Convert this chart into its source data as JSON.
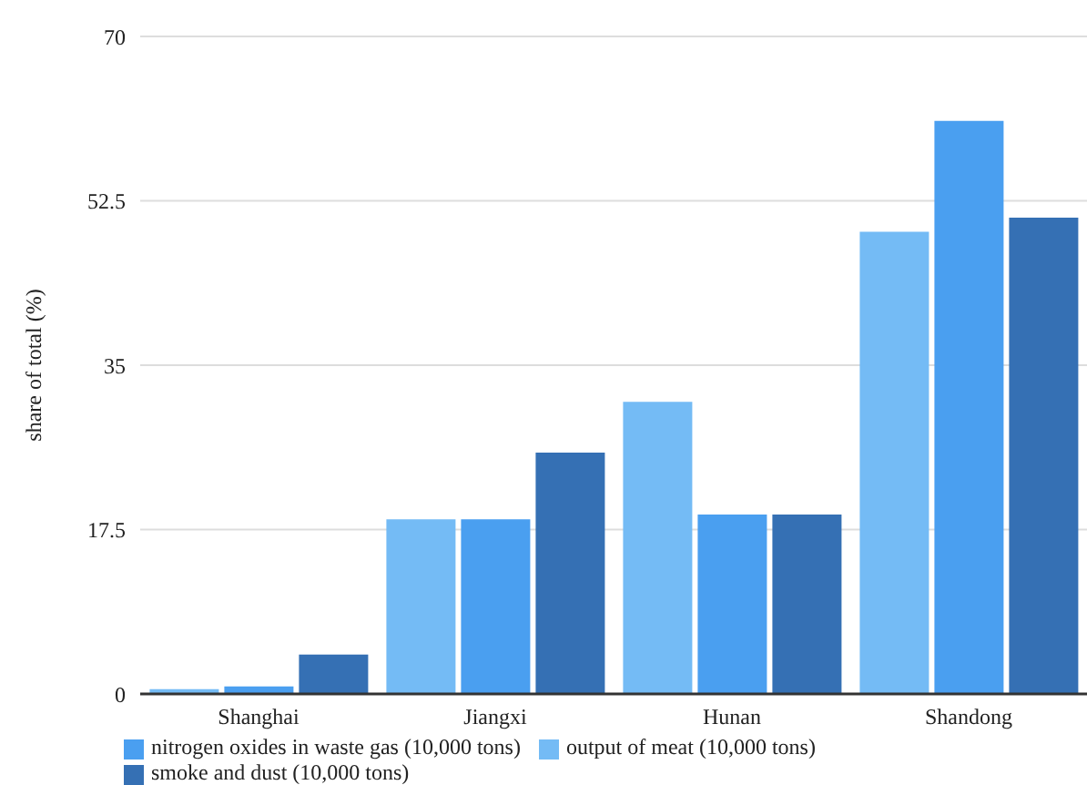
{
  "chart_data": {
    "type": "bar",
    "ylabel": "share of total (%)",
    "categories": [
      "Shanghai",
      "Jiangxi",
      "Hunan",
      "Shandong"
    ],
    "series": [
      {
        "name": "output of meat (10,000 tons)",
        "color": "#74bbf5",
        "values": [
          0.5,
          18.6,
          31.1,
          49.2
        ]
      },
      {
        "name": "nitrogen oxides in waste gas (10,000 tons)",
        "color": "#4a9ff0",
        "values": [
          0.8,
          18.6,
          19.1,
          61.0
        ]
      },
      {
        "name": "smoke and dust (10,000 tons)",
        "color": "#3570b4",
        "values": [
          4.2,
          25.7,
          19.1,
          50.7
        ]
      }
    ],
    "ylim": [
      0,
      70
    ],
    "yticks": [
      0,
      17.5,
      35,
      52.5,
      70
    ],
    "grid": "y",
    "legend": "bottom left"
  }
}
